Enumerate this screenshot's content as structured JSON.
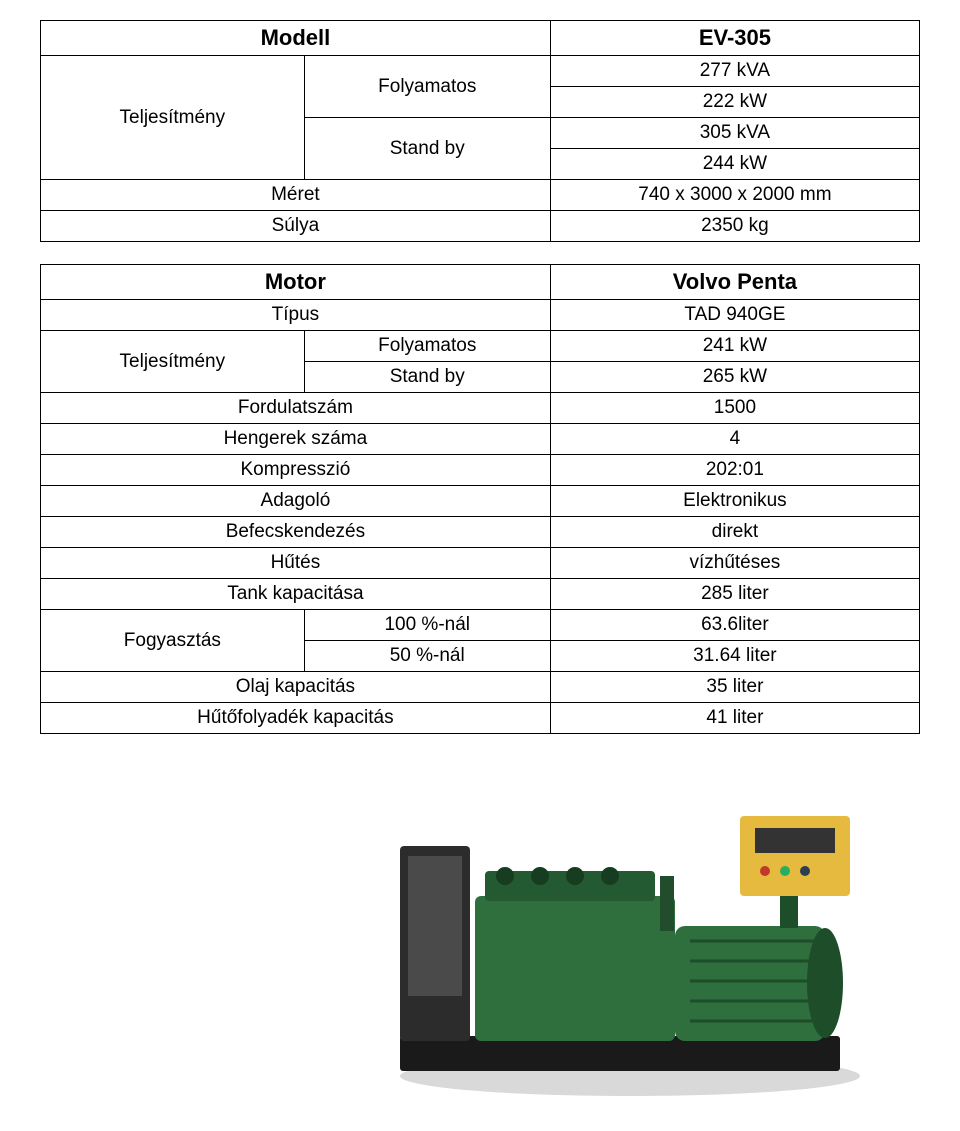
{
  "table1": {
    "header": {
      "c1": "Modell",
      "c2": "EV-305"
    },
    "rows": [
      {
        "label": "Teljesítmény",
        "label_rowspan": 4,
        "sub": "Folyamatos",
        "sub_rowspan": 2,
        "val": "277 kVA"
      },
      {
        "val": "222 kW"
      },
      {
        "sub": "Stand by",
        "sub_rowspan": 2,
        "val": "305 kVA"
      },
      {
        "val": "244 kW"
      },
      {
        "label": "Méret",
        "label_colspan": 2,
        "val": "740  x 3000 x 2000 mm"
      },
      {
        "label": "Súlya",
        "label_colspan": 2,
        "val": "2350 kg"
      }
    ]
  },
  "table2": {
    "header": {
      "c1": "Motor",
      "c2": "Volvo Penta"
    },
    "rows": [
      {
        "label": "Típus",
        "label_colspan": 2,
        "val": "TAD 940GE"
      },
      {
        "label": "Teljesítmény",
        "label_rowspan": 2,
        "sub": "Folyamatos",
        "val": "241 kW"
      },
      {
        "sub": "Stand by",
        "val": "265 kW"
      },
      {
        "label": "Fordulatszám",
        "label_colspan": 2,
        "val": "1500"
      },
      {
        "label": "Hengerek száma",
        "label_colspan": 2,
        "val": "4"
      },
      {
        "label": "Kompresszió",
        "label_colspan": 2,
        "val": "202:01"
      },
      {
        "label": "Adagoló",
        "label_colspan": 2,
        "val": "Elektronikus"
      },
      {
        "label": "Befecskendezés",
        "label_colspan": 2,
        "val": "direkt"
      },
      {
        "label": "Hűtés",
        "label_colspan": 2,
        "val": "vízhűtéses"
      },
      {
        "label": "Tank kapacitása",
        "label_colspan": 2,
        "val": "285 liter"
      },
      {
        "label": "Fogyasztás",
        "label_rowspan": 2,
        "sub": "100 %-nál",
        "val": "63.6liter"
      },
      {
        "sub": "50 %-nál",
        "val": "31.64 liter"
      },
      {
        "label": "Olaj kapacitás",
        "label_colspan": 2,
        "val": "35 liter"
      },
      {
        "label": "Hűtőfolyadék kapacitás",
        "label_colspan": 2,
        "val": "41 liter"
      }
    ]
  },
  "col_widths_pct": {
    "c1": 30,
    "c2": 28,
    "c3": 42
  },
  "image": {
    "alt": "generator-set-photo",
    "colors": {
      "radiator": "#2c2c2c",
      "engine": "#2f6f3e",
      "alternator": "#2f6f3e",
      "control_box": "#e6b93f",
      "base_frame": "#1a1a1a",
      "floor_shadow": "#d9d9d9"
    }
  }
}
